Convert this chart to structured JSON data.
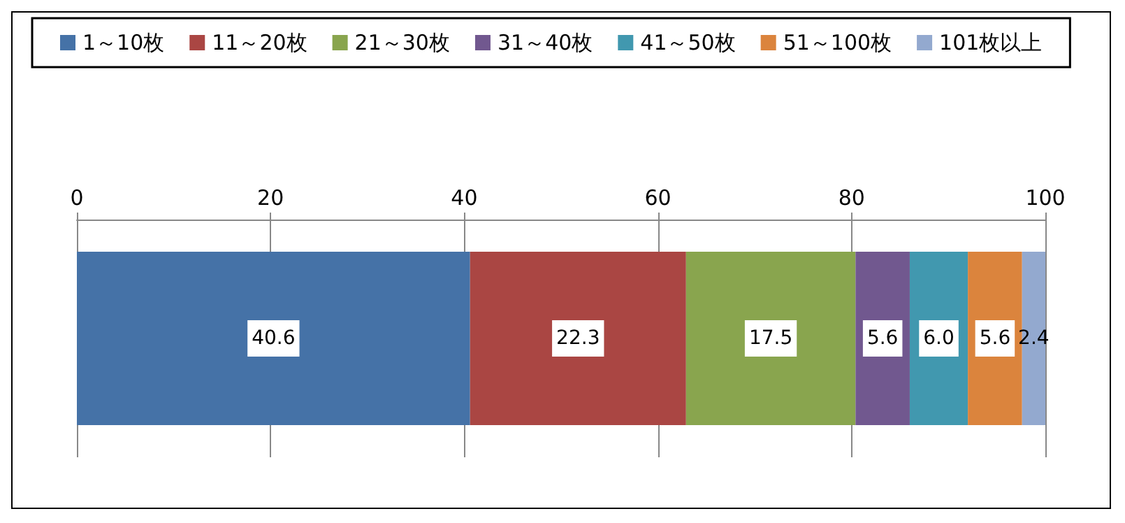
{
  "chart_data": {
    "type": "bar",
    "orientation": "horizontal",
    "stacked": true,
    "categories": [
      null
    ],
    "series": [
      {
        "name": "1～10枚",
        "color": "#4572a7",
        "values": [
          40.6
        ],
        "value_labels": [
          "40.6"
        ]
      },
      {
        "name": "11～20枚",
        "color": "#aa4643",
        "values": [
          22.3
        ],
        "value_labels": [
          "22.3"
        ]
      },
      {
        "name": "21～30枚",
        "color": "#89a54e",
        "values": [
          17.5
        ],
        "value_labels": [
          "17.5"
        ]
      },
      {
        "name": "31～40枚",
        "color": "#71588f",
        "values": [
          5.6
        ],
        "value_labels": [
          "5.6"
        ]
      },
      {
        "name": "41～50枚",
        "color": "#4198af",
        "values": [
          6.0
        ],
        "value_labels": [
          "6.0"
        ]
      },
      {
        "name": "51～100枚",
        "color": "#db843d",
        "values": [
          5.6
        ],
        "value_labels": [
          "5.6"
        ]
      },
      {
        "name": "101枚以上",
        "color": "#93a9cf",
        "values": [
          2.4
        ],
        "value_labels": [
          "2.4"
        ]
      }
    ],
    "xlim": [
      0,
      100
    ],
    "xticks": [
      0,
      20,
      40,
      60,
      80,
      100
    ],
    "grid": "x",
    "legend": "top"
  }
}
